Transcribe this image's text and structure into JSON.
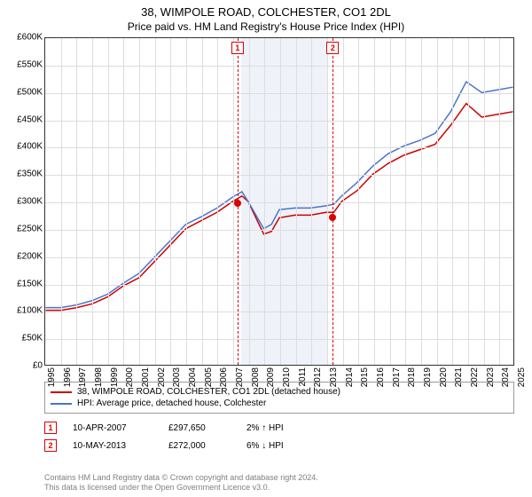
{
  "title": {
    "main": "38, WIMPOLE ROAD, COLCHESTER, CO1 2DL",
    "sub": "Price paid vs. HM Land Registry's House Price Index (HPI)"
  },
  "chart": {
    "type": "line",
    "xlim": [
      1995,
      2025
    ],
    "ylim": [
      0,
      600
    ],
    "ytick_step": 50,
    "ytick_prefix": "£",
    "ytick_suffix": "K",
    "xtick_step": 1,
    "background_color": "#ffffff",
    "grid_color": "#dddddd",
    "border_color": "#333333",
    "band": {
      "start": 2007.5,
      "end": 2013.0,
      "color": "#e8edf7"
    },
    "series": [
      {
        "name": "property",
        "label": "38, WIMPOLE ROAD, COLCHESTER, CO1 2DL (detached house)",
        "color": "#cc0000",
        "width": 1.5,
        "points": [
          [
            1995,
            100
          ],
          [
            1996,
            100
          ],
          [
            1997,
            105
          ],
          [
            1998,
            112
          ],
          [
            1999,
            125
          ],
          [
            2000,
            145
          ],
          [
            2001,
            160
          ],
          [
            2002,
            190
          ],
          [
            2003,
            220
          ],
          [
            2004,
            250
          ],
          [
            2005,
            265
          ],
          [
            2006,
            280
          ],
          [
            2007,
            300
          ],
          [
            2007.6,
            310
          ],
          [
            2008,
            300
          ],
          [
            2009,
            240
          ],
          [
            2009.5,
            245
          ],
          [
            2010,
            270
          ],
          [
            2011,
            275
          ],
          [
            2012,
            275
          ],
          [
            2013,
            280
          ],
          [
            2013.5,
            280
          ],
          [
            2014,
            300
          ],
          [
            2015,
            320
          ],
          [
            2016,
            350
          ],
          [
            2017,
            370
          ],
          [
            2018,
            385
          ],
          [
            2019,
            395
          ],
          [
            2020,
            405
          ],
          [
            2021,
            440
          ],
          [
            2022,
            480
          ],
          [
            2023,
            455
          ],
          [
            2024,
            460
          ],
          [
            2025,
            465
          ]
        ]
      },
      {
        "name": "hpi",
        "label": "HPI: Average price, detached house, Colchester",
        "color": "#4a74c9",
        "width": 1.5,
        "points": [
          [
            1995,
            105
          ],
          [
            1996,
            105
          ],
          [
            1997,
            110
          ],
          [
            1998,
            118
          ],
          [
            1999,
            130
          ],
          [
            2000,
            150
          ],
          [
            2001,
            168
          ],
          [
            2002,
            198
          ],
          [
            2003,
            228
          ],
          [
            2004,
            258
          ],
          [
            2005,
            272
          ],
          [
            2006,
            288
          ],
          [
            2007,
            308
          ],
          [
            2007.6,
            318
          ],
          [
            2008,
            300
          ],
          [
            2009,
            250
          ],
          [
            2009.5,
            258
          ],
          [
            2010,
            285
          ],
          [
            2011,
            288
          ],
          [
            2012,
            288
          ],
          [
            2013,
            292
          ],
          [
            2013.5,
            295
          ],
          [
            2014,
            310
          ],
          [
            2015,
            335
          ],
          [
            2016,
            365
          ],
          [
            2017,
            388
          ],
          [
            2018,
            402
          ],
          [
            2019,
            412
          ],
          [
            2020,
            425
          ],
          [
            2021,
            465
          ],
          [
            2022,
            520
          ],
          [
            2023,
            500
          ],
          [
            2024,
            505
          ],
          [
            2025,
            510
          ]
        ]
      }
    ],
    "marker_lines": [
      {
        "x": 2007.28,
        "label": "1",
        "dot_y": 297.65
      },
      {
        "x": 2013.36,
        "label": "2",
        "dot_y": 272.0
      }
    ]
  },
  "legend": {
    "items": [
      {
        "color": "#cc0000",
        "label": "38, WIMPOLE ROAD, COLCHESTER, CO1 2DL (detached house)"
      },
      {
        "color": "#4a74c9",
        "label": "HPI: Average price, detached house, Colchester"
      }
    ]
  },
  "sales": [
    {
      "marker": "1",
      "date": "10-APR-2007",
      "price": "£297,650",
      "diff": "2% ↑ HPI"
    },
    {
      "marker": "2",
      "date": "10-MAY-2013",
      "price": "£272,000",
      "diff": "6% ↓ HPI"
    }
  ],
  "footer": {
    "line1": "Contains HM Land Registry data © Crown copyright and database right 2024.",
    "line2": "This data is licensed under the Open Government Licence v3.0."
  }
}
